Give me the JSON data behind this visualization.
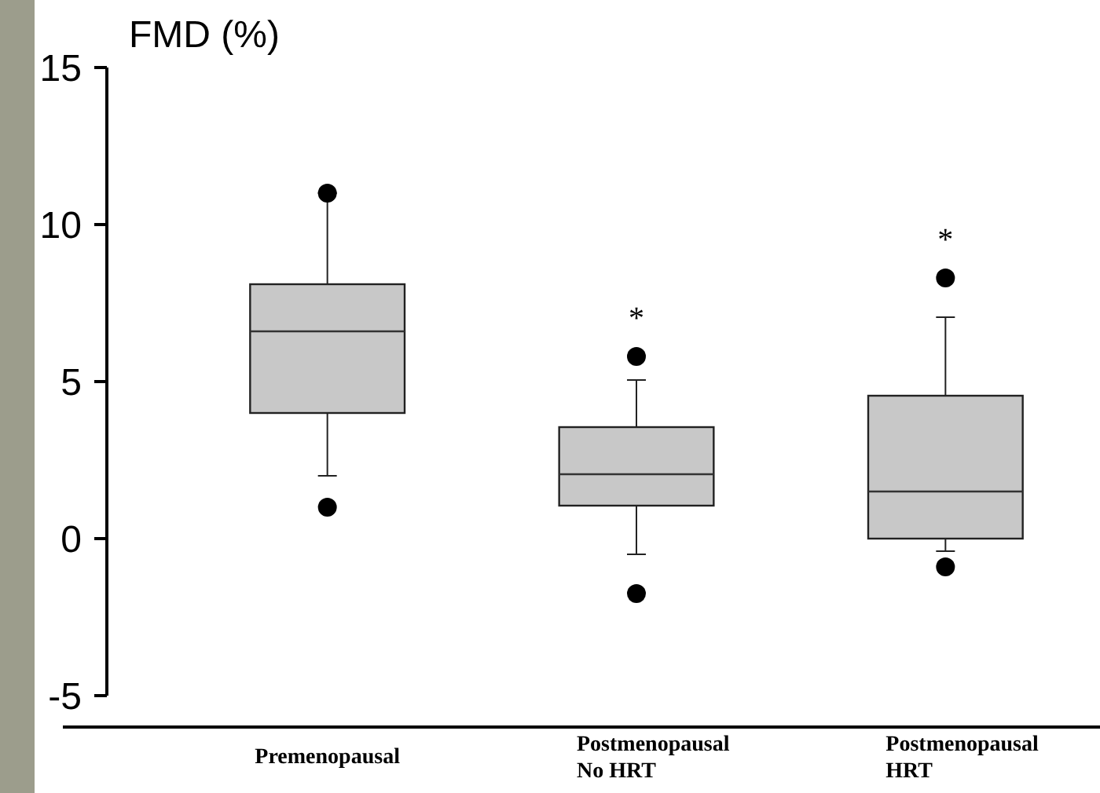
{
  "chart_data": {
    "type": "box",
    "ylabel": "FMD (%)",
    "categories": [
      "Premenopausal",
      "Postmenopausal\nNo HRT",
      "Postmenopausal\nHRT"
    ],
    "boxes": [
      {
        "low": 2.0,
        "q1": 4.0,
        "median": 6.6,
        "q3": 8.1,
        "high": 11.0,
        "outliers": [
          11.0,
          1.0
        ]
      },
      {
        "low": -0.5,
        "q1": 1.05,
        "median": 2.05,
        "q3": 3.55,
        "high": 5.05,
        "outliers": [
          5.8,
          -1.75
        ]
      },
      {
        "low": -0.4,
        "q1": 0.0,
        "median": 1.5,
        "q3": 4.55,
        "high": 7.05,
        "outliers": [
          8.3,
          -0.9
        ]
      }
    ],
    "color": "#c8c8c8",
    "ylim": [
      -6,
      15
    ],
    "yticks": [
      -5,
      0,
      5,
      10,
      15
    ],
    "annotations": [
      "*",
      "*"
    ]
  }
}
